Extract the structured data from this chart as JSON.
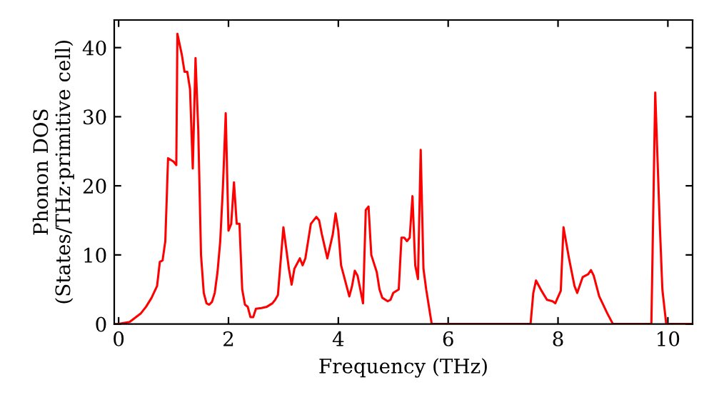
{
  "chart_data": {
    "type": "line",
    "xlabel": "Frequency (THz)",
    "ylabel": "Phonon DOS\n(States/THz·primitive cell)",
    "xlim": [
      -0.08,
      10.45
    ],
    "ylim": [
      0,
      44
    ],
    "xticks": [
      0,
      2,
      4,
      6,
      8,
      10
    ],
    "yticks": [
      0,
      10,
      20,
      30,
      40
    ],
    "grid": false,
    "legend": false,
    "marker": "none",
    "line_style": "solid",
    "series": [
      {
        "color": "#ff0000",
        "x": [
          0,
          0.2,
          0.4,
          0.5,
          0.6,
          0.7,
          0.75,
          0.8,
          0.85,
          0.9,
          1.0,
          1.05,
          1.07,
          1.15,
          1.2,
          1.25,
          1.3,
          1.35,
          1.4,
          1.45,
          1.5,
          1.55,
          1.6,
          1.65,
          1.7,
          1.75,
          1.8,
          1.85,
          1.9,
          1.95,
          2.0,
          2.05,
          2.1,
          2.15,
          2.2,
          2.25,
          2.3,
          2.35,
          2.4,
          2.45,
          2.5,
          2.6,
          2.7,
          2.8,
          2.85,
          2.9,
          3.0,
          3.1,
          3.15,
          3.2,
          3.3,
          3.35,
          3.4,
          3.5,
          3.6,
          3.65,
          3.7,
          3.8,
          3.9,
          3.95,
          4.0,
          4.05,
          4.1,
          4.2,
          4.25,
          4.3,
          4.35,
          4.4,
          4.45,
          4.5,
          4.55,
          4.6,
          4.7,
          4.75,
          4.8,
          4.9,
          4.95,
          5.0,
          5.1,
          5.15,
          5.2,
          5.25,
          5.3,
          5.35,
          5.4,
          5.45,
          5.5,
          5.55,
          5.6,
          5.7,
          7.5,
          7.55,
          7.6,
          7.7,
          7.8,
          7.9,
          7.95,
          8.05,
          8.1,
          8.2,
          8.3,
          8.35,
          8.45,
          8.55,
          8.6,
          8.65,
          8.75,
          8.9,
          9.0,
          9.7,
          9.77,
          9.85,
          9.9,
          9.97,
          10.45
        ],
        "values": [
          0,
          0.3,
          1.5,
          2.5,
          3.8,
          5.5,
          9,
          9.2,
          12,
          24,
          23.5,
          23,
          42,
          39,
          36.5,
          36.5,
          34,
          22.5,
          38.5,
          28,
          10,
          4.5,
          3,
          2.8,
          3.2,
          4.5,
          7.5,
          12,
          20,
          30.5,
          13.5,
          14.5,
          20.5,
          14.5,
          14.5,
          5,
          2.8,
          2.5,
          1,
          1,
          2.2,
          2.3,
          2.5,
          3,
          3.5,
          4.2,
          14,
          8,
          5.7,
          8,
          9.5,
          8.5,
          9.5,
          14.5,
          15.5,
          15,
          13,
          9.5,
          13,
          16,
          13.5,
          8.5,
          7,
          4,
          5.5,
          7.7,
          7,
          5,
          3,
          16.5,
          17,
          10,
          7.5,
          5,
          3.8,
          3.3,
          3.5,
          4.5,
          5,
          12.5,
          12.5,
          12,
          12.5,
          18.5,
          8.5,
          6.5,
          25.2,
          8,
          5,
          0,
          0,
          4.5,
          6.3,
          4.8,
          3.5,
          3.3,
          3.0,
          4.8,
          14,
          9.5,
          5.5,
          4.5,
          6.8,
          7.2,
          7.8,
          7,
          4,
          1.5,
          0,
          0,
          33.5,
          15,
          5,
          0,
          0
        ]
      }
    ]
  }
}
